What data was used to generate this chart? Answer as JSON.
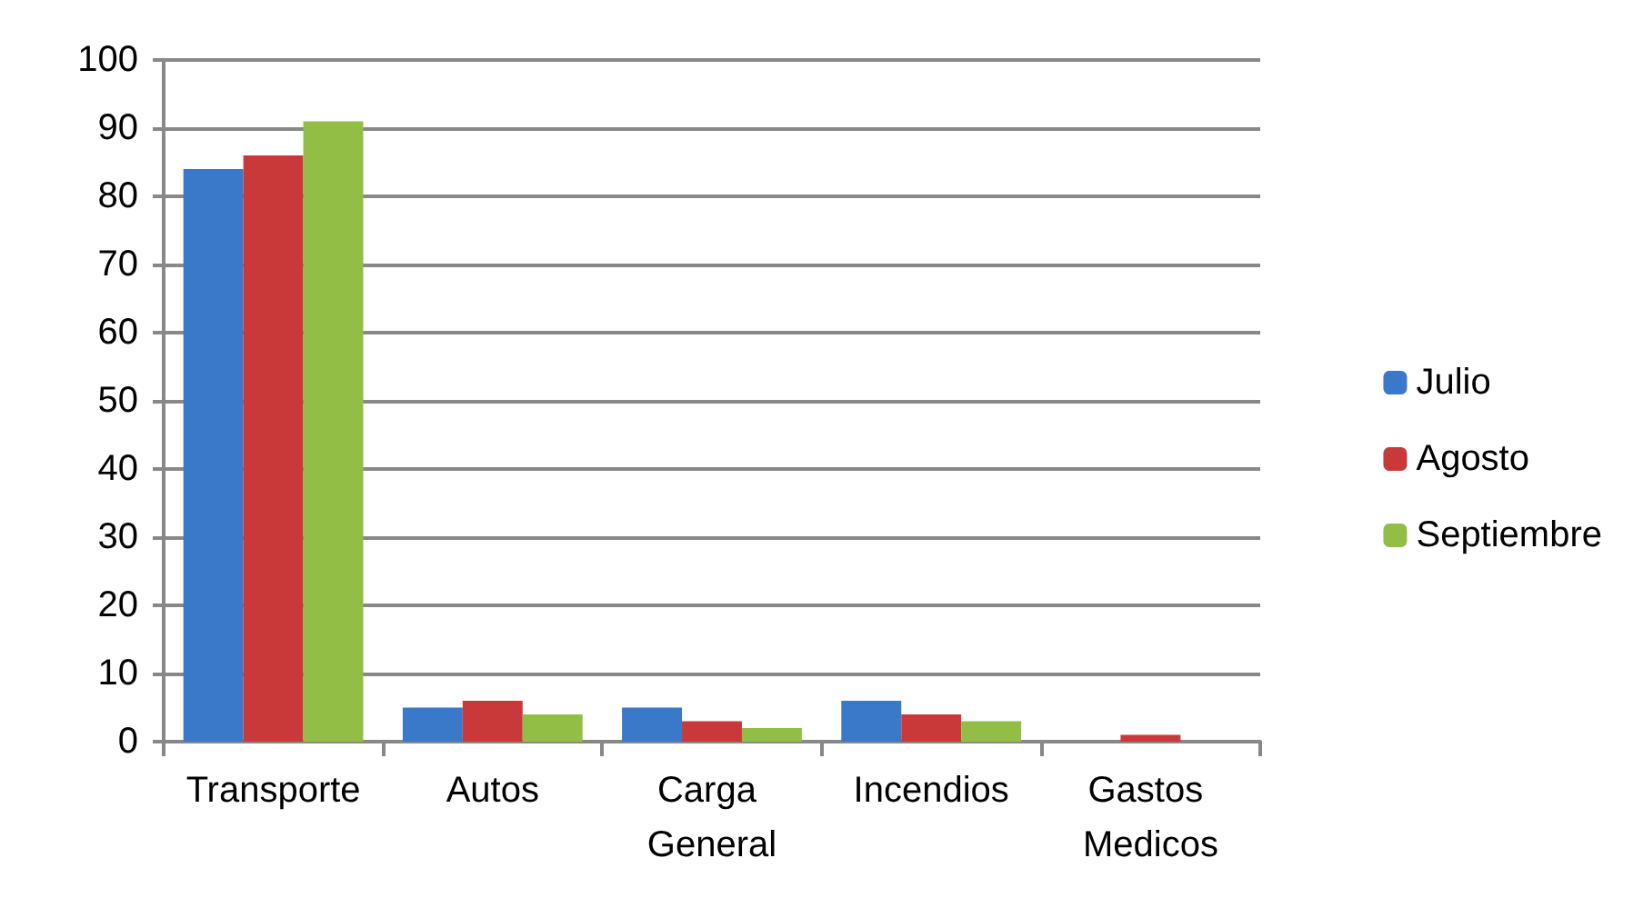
{
  "chart_data": {
    "type": "bar",
    "categories": [
      "Transporte",
      "Autos",
      "Carga General",
      "Incendios",
      "Gastos Medicos"
    ],
    "series": [
      {
        "name": "Julio",
        "color": "#3a78c9",
        "values": [
          84,
          5,
          5,
          6,
          0
        ]
      },
      {
        "name": "Agosto",
        "color": "#c9393a",
        "values": [
          86,
          6,
          3,
          4,
          1
        ]
      },
      {
        "name": "Septiembre",
        "color": "#93be45",
        "values": [
          91,
          4,
          2,
          3,
          0
        ]
      }
    ],
    "ylim": [
      0,
      100
    ],
    "yticks": [
      0,
      10,
      20,
      30,
      40,
      50,
      60,
      70,
      80,
      90,
      100
    ],
    "grid": "y",
    "legend": "right"
  }
}
